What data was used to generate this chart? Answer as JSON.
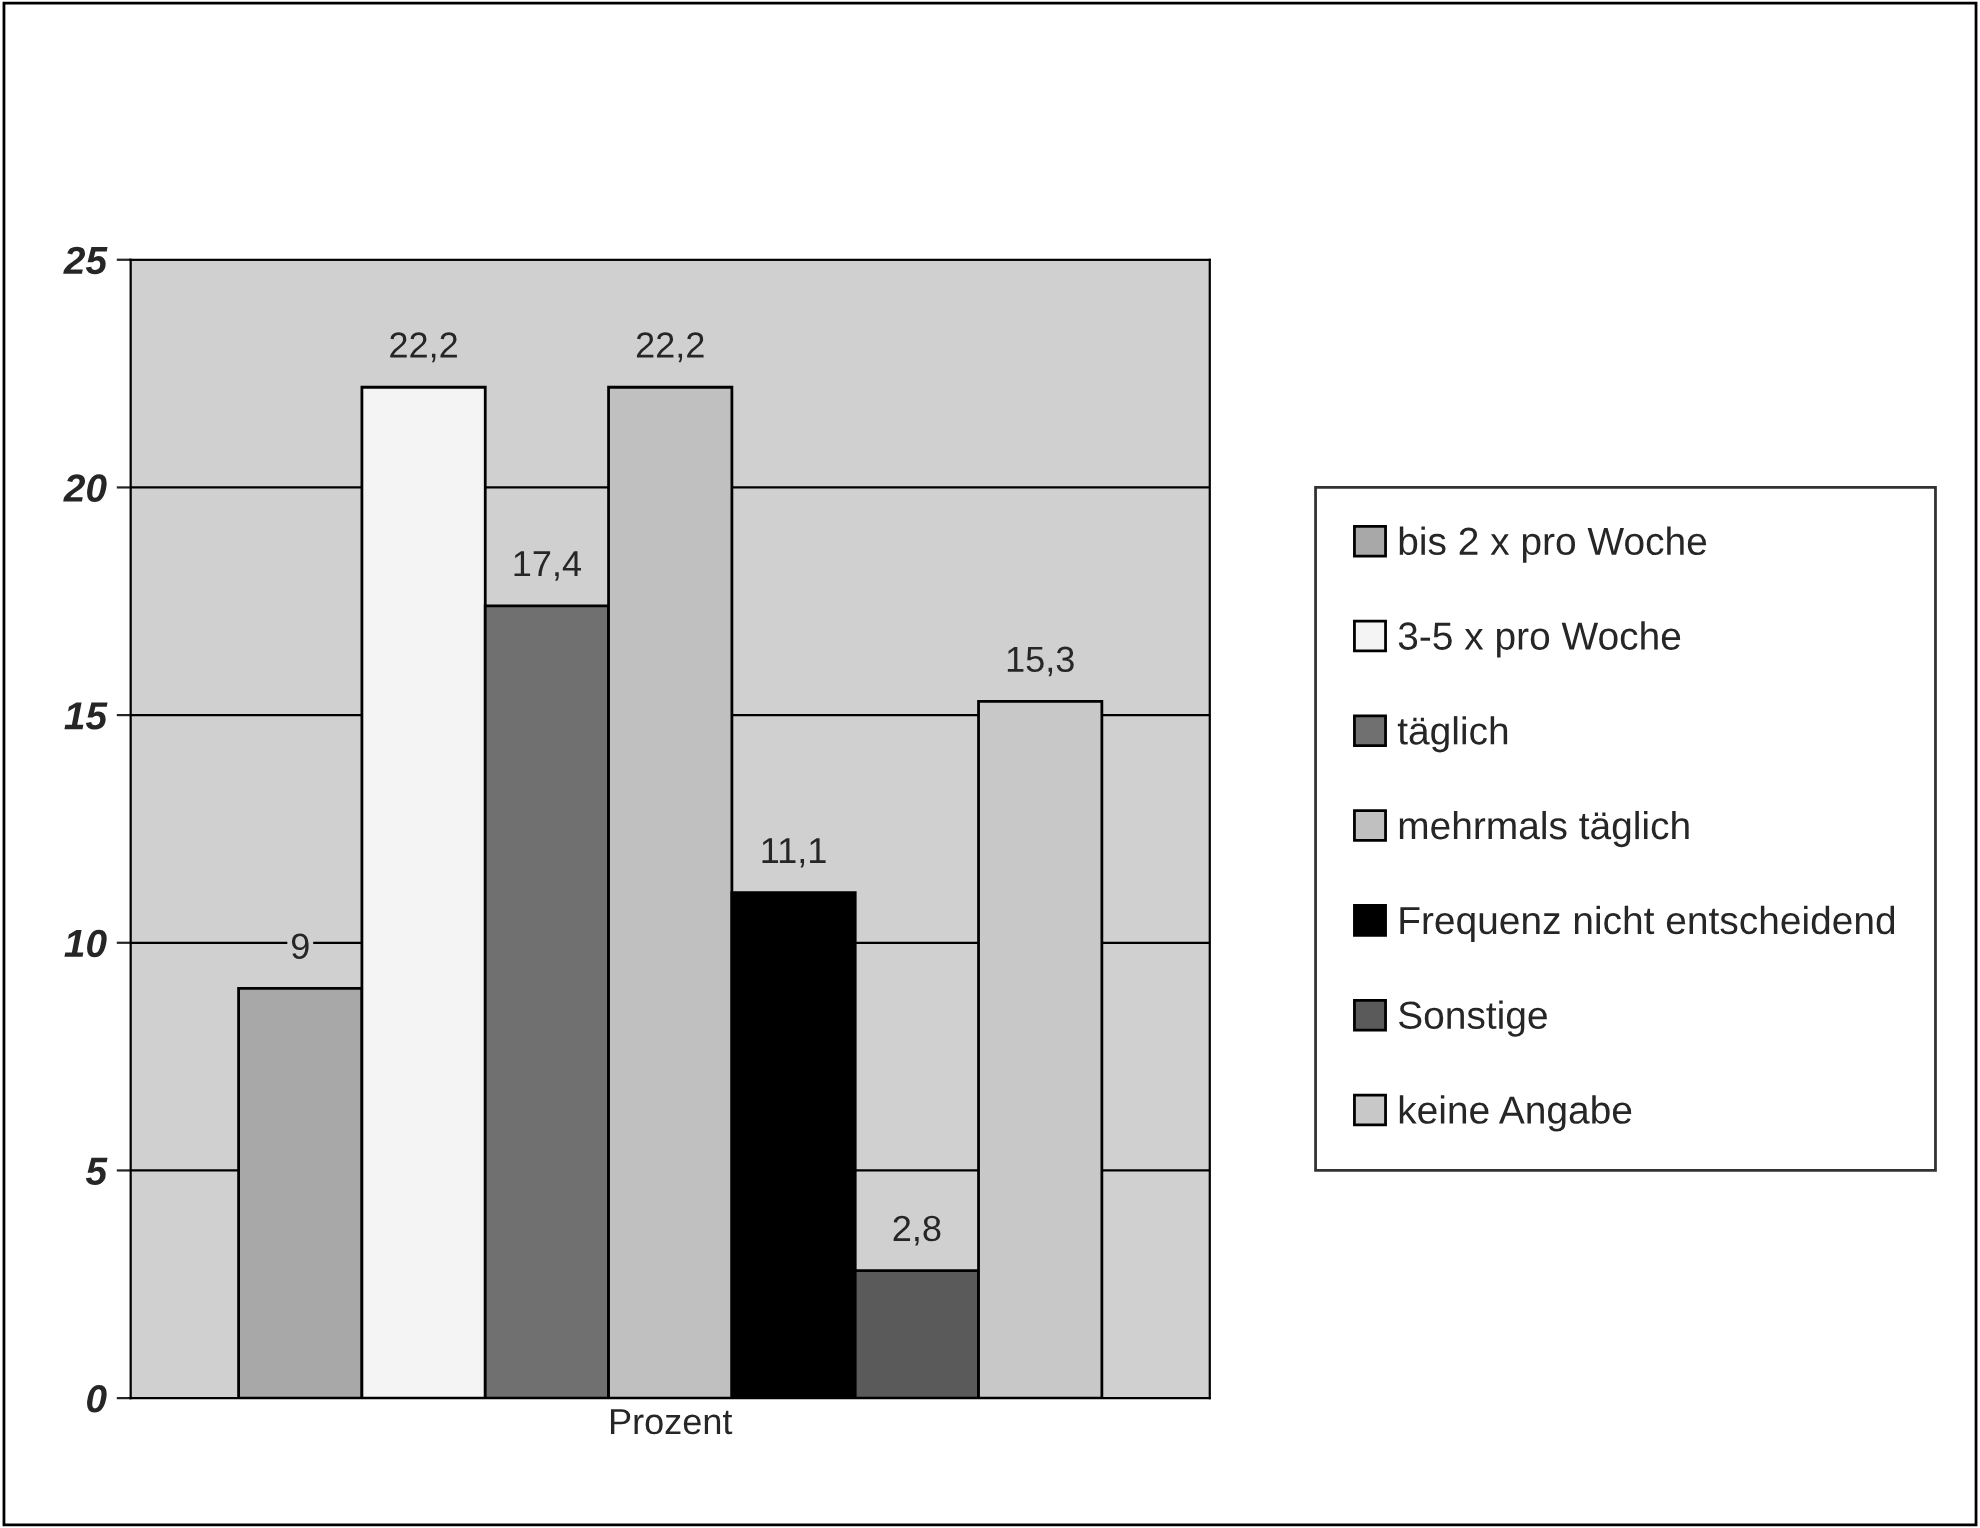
{
  "chart_data": {
    "type": "bar",
    "categories": [
      "Prozent"
    ],
    "series": [
      {
        "name": "bis 2 x pro Woche",
        "color": "#a8a8a8",
        "values": [
          9
        ],
        "value_labels": [
          "9"
        ]
      },
      {
        "name": "3-5 x pro Woche",
        "color": "#f4f4f4",
        "values": [
          22.2
        ],
        "value_labels": [
          "22,2"
        ]
      },
      {
        "name": "täglich",
        "color": "#707070",
        "values": [
          17.4
        ],
        "value_labels": [
          "17,4"
        ]
      },
      {
        "name": "mehrmals täglich",
        "color": "#c0c0c0",
        "values": [
          22.2
        ],
        "value_labels": [
          "22,2"
        ]
      },
      {
        "name": "Frequenz nicht entscheidend",
        "color": "#000000",
        "values": [
          11.1
        ],
        "value_labels": [
          "11,1"
        ]
      },
      {
        "name": "Sonstige",
        "color": "#5a5a5a",
        "values": [
          2.8
        ],
        "value_labels": [
          "2,8"
        ]
      },
      {
        "name": "keine Angabe",
        "color": "#c8c8c8",
        "values": [
          15.3
        ],
        "value_labels": [
          "15,3"
        ]
      }
    ],
    "ylim": [
      0,
      25
    ],
    "yticks": [
      0,
      5,
      10,
      15,
      20,
      25
    ],
    "grid": "y",
    "legend": "right"
  }
}
